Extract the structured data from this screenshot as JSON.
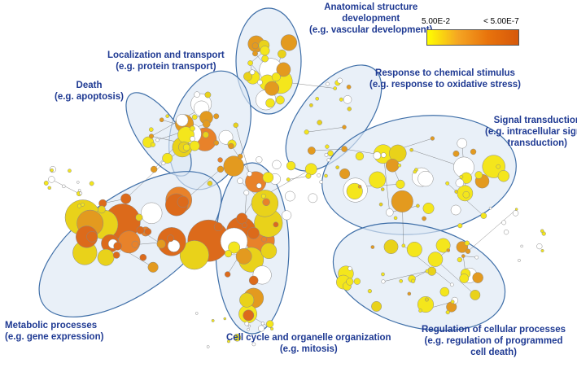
{
  "legend": {
    "low_label": "5.00E-2",
    "high_label": "< 5.00E-7",
    "low_color": "#ffff00",
    "high_color": "#d6580a"
  },
  "colors": {
    "ellipse_fill": "#dde8f4",
    "ellipse_stroke": "#3f6fa8",
    "edge": "#555555",
    "label": "#1f3a93"
  },
  "clusters": [
    {
      "id": "anatomical",
      "line1": "Anatomical structure",
      "line2": "development",
      "line3": "(e.g. vascular development)"
    },
    {
      "id": "localization",
      "line1": "Localization and transport",
      "line2": "(e.g. protein transport)"
    },
    {
      "id": "death",
      "line1": "Death",
      "line2": "(e.g. apoptosis)"
    },
    {
      "id": "response",
      "line1": "Response to chemical stimulus",
      "line2": "(e.g. response to oxidative stress)"
    },
    {
      "id": "signal",
      "line1": "Signal transduction",
      "line2": "(e.g. intracellular signal",
      "line3": "transduction)"
    },
    {
      "id": "metabolic",
      "line1": "Metabolic processes",
      "line2": "(e.g. gene expression)"
    },
    {
      "id": "cellcycle",
      "line1": "Cell cycle and organelle organization",
      "line2": "(e.g. mitosis)"
    },
    {
      "id": "regulation",
      "line1": "Regulation of cellular processes",
      "line2": "(e.g. regulation of programmed",
      "line3": "cell death)"
    }
  ]
}
